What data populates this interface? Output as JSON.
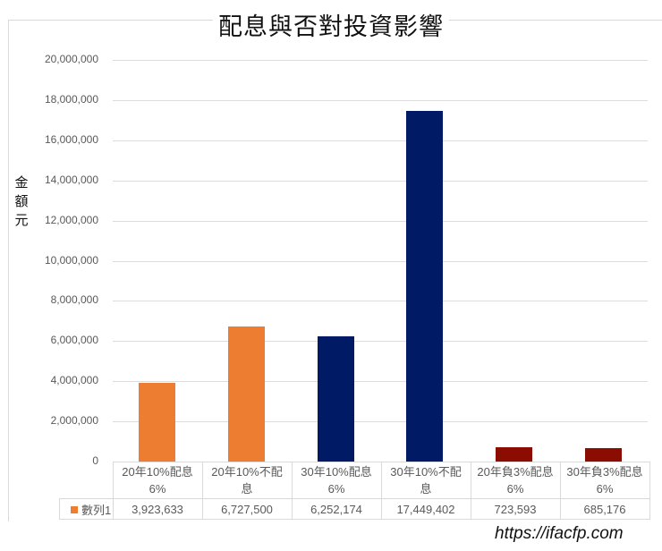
{
  "chart_data": {
    "type": "bar",
    "title": "配息與否對投資影響",
    "xlabel": "",
    "ylabel": "金額元",
    "ylim": [
      0,
      20000000
    ],
    "yticks": [
      "0",
      "2,000,000",
      "4,000,000",
      "6,000,000",
      "8,000,000",
      "10,000,000",
      "12,000,000",
      "14,000,000",
      "16,000,000",
      "18,000,000",
      "20,000,000"
    ],
    "grid": true,
    "legend_position": "data-table",
    "categories": [
      "20年10%配息6%",
      "20年10%不配息",
      "30年10%配息6%",
      "30年10%不配息",
      "20年負3%配息6%",
      "30年負3%配息6%"
    ],
    "series": [
      {
        "name": "數列1",
        "values": [
          3923633,
          6727500,
          6252174,
          17449402,
          723593,
          685176
        ],
        "value_labels": [
          "3,923,633",
          "6,727,500",
          "6,252,174",
          "17,449,402",
          "723,593",
          "685,176"
        ],
        "bar_colors": [
          "#ed7d31",
          "#ed7d31",
          "#001a66",
          "#001a66",
          "#8b0d02",
          "#8b0d02"
        ]
      }
    ]
  },
  "chart": {
    "title": "配息與否對投資影響",
    "ylabel_chars": [
      "金",
      "額",
      "元"
    ],
    "category_lines": [
      [
        "20年10%配息",
        "6%"
      ],
      [
        "20年10%不配",
        "息"
      ],
      [
        "30年10%配息",
        "6%"
      ],
      [
        "30年10%不配",
        "息"
      ],
      [
        "20年負3%配息",
        "6%"
      ],
      [
        "30年負3%配息",
        "6%"
      ]
    ],
    "legend_name": "數列1",
    "legend_color": "#ed7d31"
  },
  "watermark": "https://ifacfp.com"
}
